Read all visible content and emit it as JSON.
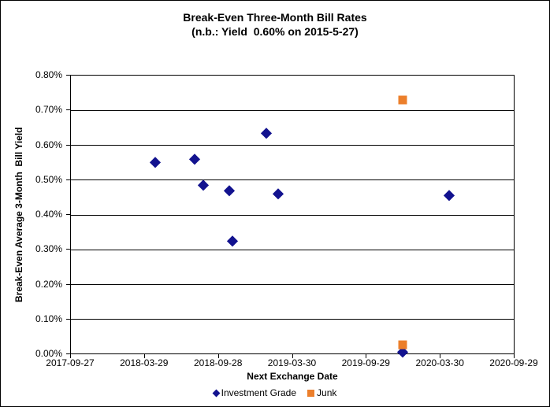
{
  "chart_data": {
    "type": "scatter",
    "title": "Break-Even Three-Month Bill Rates",
    "subtitle": "(n.b.: Yield  0.60% on 2015-5-27)",
    "xlabel": "Next Exchange Date",
    "ylabel": "Break-Even Average 3-Month  Bill Yield",
    "x_range": [
      "2017-09-27",
      "2020-09-29"
    ],
    "x_ticks": [
      "2017-09-27",
      "2018-03-29",
      "2018-09-28",
      "2019-03-30",
      "2019-09-29",
      "2020-03-30",
      "2020-09-29"
    ],
    "ylim": [
      0,
      0.8
    ],
    "y_tick_values": [
      0,
      0.1,
      0.2,
      0.3,
      0.4,
      0.5,
      0.6,
      0.7,
      0.8
    ],
    "y_tick_labels": [
      "0.00%",
      "0.10%",
      "0.20%",
      "0.30%",
      "0.40%",
      "0.50%",
      "0.60%",
      "0.70%",
      "0.80%"
    ],
    "grid": "horizontal",
    "legend_position": "bottom-center",
    "axis_color": "#000000",
    "series": [
      {
        "name": "Investment Grade",
        "marker": "diamond",
        "color": "#12128F",
        "points": [
          {
            "x": "2018-04-23",
            "y": 0.55
          },
          {
            "x": "2018-07-31",
            "y": 0.56
          },
          {
            "x": "2018-08-21",
            "y": 0.485
          },
          {
            "x": "2018-10-24",
            "y": 0.47
          },
          {
            "x": "2018-11-01",
            "y": 0.325
          },
          {
            "x": "2019-01-24",
            "y": 0.635
          },
          {
            "x": "2019-02-22",
            "y": 0.46
          },
          {
            "x": "2019-12-28",
            "y": 0.005
          },
          {
            "x": "2020-04-22",
            "y": 0.455
          }
        ]
      },
      {
        "name": "Junk",
        "marker": "square",
        "color": "#EC7F2B",
        "points": [
          {
            "x": "2019-12-28",
            "y": 0.73
          },
          {
            "x": "2019-12-28",
            "y": 0.025
          }
        ]
      }
    ]
  }
}
